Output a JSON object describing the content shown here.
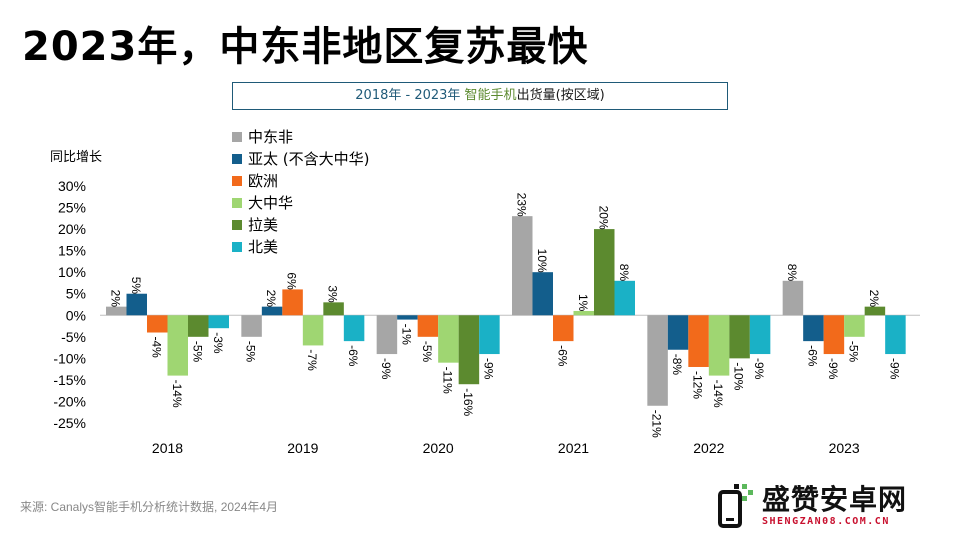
{
  "title": "2023年，中东非地区复苏最快",
  "subtitle": {
    "part1": "2018年 - 2023年 ",
    "part2": "智能手机",
    "part3": "出货量(按区域)"
  },
  "source": "来源: Canalys智能手机分析统计数据, 2024年4月",
  "logo": {
    "name": "盛赞安卓网",
    "url": "SHENGZAN08.COM.CN"
  },
  "colors": {
    "mea": "#a6a6a6",
    "apac": "#135e8c",
    "europe": "#f26a1b",
    "china": "#9fd672",
    "latam": "#5c8a2f",
    "na": "#1ab1c6"
  },
  "chart_data": {
    "type": "bar",
    "title": "2018年 - 2023年 智能手机出货量(按区域)",
    "ylabel": "同比增长",
    "xlabel": "",
    "ylim": [
      -25,
      30
    ],
    "yticks": [
      "30%",
      "25%",
      "20%",
      "15%",
      "10%",
      "5%",
      "0%",
      "-5%",
      "-10%",
      "-15%",
      "-20%",
      "-25%"
    ],
    "categories": [
      "2018",
      "2019",
      "2020",
      "2021",
      "2022",
      "2023"
    ],
    "series": [
      {
        "name": "中东非",
        "values": [
          2,
          -5,
          -9,
          23,
          -21,
          8
        ],
        "labels": [
          "2%",
          "-5%",
          "-9%",
          "23%",
          "-21%",
          "8%"
        ]
      },
      {
        "name": "亚太 (不含大中华)",
        "values": [
          5,
          2,
          -1,
          10,
          -8,
          -6
        ],
        "labels": [
          "5%",
          "2%",
          "-1%",
          "10%",
          "-8%",
          "-6%"
        ]
      },
      {
        "name": "欧洲",
        "values": [
          -4,
          6,
          -5,
          -6,
          -12,
          -9
        ],
        "labels": [
          "-4%",
          "6%",
          "-5%",
          "-6%",
          "-12%",
          "-9%"
        ]
      },
      {
        "name": "大中华",
        "values": [
          -14,
          -7,
          -11,
          1,
          -14,
          -5
        ],
        "labels": [
          "-14%",
          "-7%",
          "-11%",
          "1%",
          "-14%",
          "-5%"
        ]
      },
      {
        "name": "拉美",
        "values": [
          -5,
          3,
          -16,
          20,
          -10,
          2
        ],
        "labels": [
          "-5%",
          "3%",
          "-16%",
          "20%",
          "-10%",
          "2%"
        ]
      },
      {
        "name": "北美",
        "values": [
          -3,
          -6,
          -9,
          8,
          -9,
          -9
        ],
        "labels": [
          "-3%",
          "-6%",
          "-9%",
          "8%",
          "-9%",
          "-9%"
        ]
      }
    ],
    "legend_position": "top-left"
  }
}
